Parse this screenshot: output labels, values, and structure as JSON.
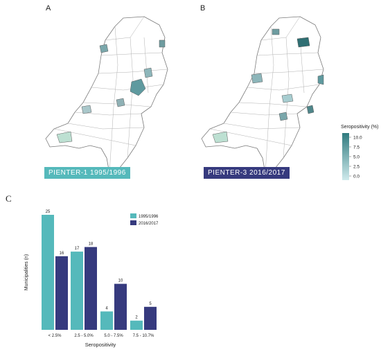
{
  "panels": {
    "a_label": "A",
    "b_label": "B",
    "c_label": "C",
    "a_badge": "PIENTER-1  1995/1996",
    "b_badge": "PIENTER-3  2016/2017"
  },
  "colorscale": {
    "title": "Seropositivity (%)",
    "ticks": [
      "10.0",
      "7.5",
      "5.0",
      "2.5",
      "0.0"
    ],
    "color_low": "#cfeaec",
    "color_high": "#2f7a7e"
  },
  "colors": {
    "series1": "#55b9bb",
    "series2": "#363a7e",
    "badge_a": "#55b9bb",
    "badge_b": "#363a7e"
  },
  "chart_data": {
    "type": "bar",
    "categories": [
      "< 2.5%",
      "2.5 - 5.0%",
      "5.0 - 7.5%",
      "7.5 - 10.7%"
    ],
    "series": [
      {
        "name": "1995/1996",
        "values": [
          25,
          17,
          4,
          2
        ]
      },
      {
        "name": "2016/2017",
        "values": [
          16,
          18,
          10,
          5
        ]
      }
    ],
    "xlabel": "Seropositivity",
    "ylabel": "Municipalities (n)",
    "ylim": [
      0,
      25
    ],
    "legend_position": "top-right",
    "grid": false
  }
}
